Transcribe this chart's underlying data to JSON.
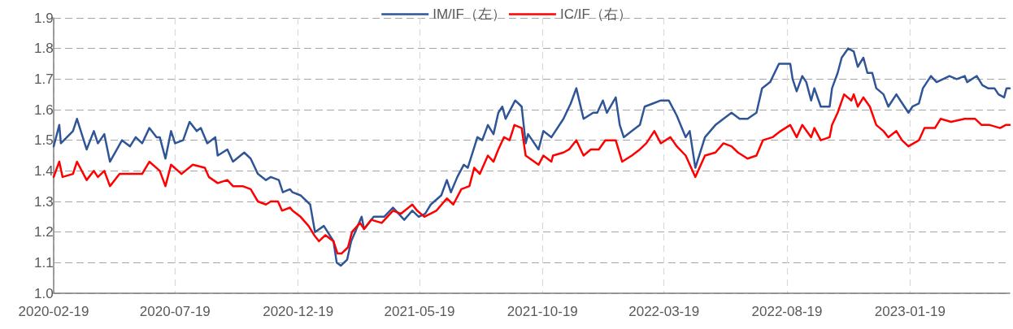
{
  "chart_data": {
    "type": "line",
    "grid": true,
    "legend": "top",
    "marker": "none",
    "line_style": "solid",
    "xlim": [
      "2020-02-19",
      "2023-05-23"
    ],
    "xticks": [
      "2020-02-19",
      "2020-07-19",
      "2020-12-19",
      "2021-05-19",
      "2021-10-19",
      "2022-03-19",
      "2022-08-19",
      "2023-01-19"
    ],
    "ylim": [
      1.0,
      1.9
    ],
    "yticks": [
      {
        "value": 1.0,
        "label": "1.0"
      },
      {
        "value": 1.1,
        "label": "1.1"
      },
      {
        "value": 1.2,
        "label": "1.2"
      },
      {
        "value": 1.3,
        "label": "1.3"
      },
      {
        "value": 1.4,
        "label": "1.4"
      },
      {
        "value": 1.5,
        "label": "1.5"
      },
      {
        "value": 1.6,
        "label": "1.6"
      },
      {
        "value": 1.7,
        "label": "1.7"
      },
      {
        "value": 1.8,
        "label": "1.8"
      },
      {
        "value": 1.9,
        "label": "1.9"
      }
    ],
    "series": [
      {
        "name": "IM/IF（左）",
        "color": "#2f5597",
        "x": [
          "2020-02-19",
          "2020-02-26",
          "2020-02-28",
          "2020-03-14",
          "2020-03-19",
          "2020-03-31",
          "2020-04-09",
          "2020-04-14",
          "2020-04-22",
          "2020-04-29",
          "2020-05-14",
          "2020-05-24",
          "2020-05-31",
          "2020-06-08",
          "2020-06-17",
          "2020-06-26",
          "2020-06-30",
          "2020-07-07",
          "2020-07-14",
          "2020-07-19",
          "2020-07-29",
          "2020-08-06",
          "2020-08-15",
          "2020-08-20",
          "2020-08-28",
          "2020-09-07",
          "2020-09-10",
          "2020-09-22",
          "2020-09-29",
          "2020-10-13",
          "2020-10-21",
          "2020-10-30",
          "2020-11-09",
          "2020-11-15",
          "2020-11-25",
          "2020-11-30",
          "2020-12-09",
          "2020-12-12",
          "2020-12-22",
          "2021-01-03",
          "2021-01-09",
          "2021-01-20",
          "2021-02-01",
          "2021-02-05",
          "2021-02-10",
          "2021-02-18",
          "2021-02-23",
          "2021-03-08",
          "2021-03-11",
          "2021-03-23",
          "2021-04-05",
          "2021-04-16",
          "2021-04-30",
          "2021-05-10",
          "2021-05-18",
          "2021-05-26",
          "2021-06-02",
          "2021-06-15",
          "2021-06-22",
          "2021-06-27",
          "2021-07-05",
          "2021-07-13",
          "2021-07-18",
          "2021-07-30",
          "2021-08-05",
          "2021-08-12",
          "2021-08-19",
          "2021-08-25",
          "2021-08-30",
          "2021-09-03",
          "2021-09-15",
          "2021-09-23",
          "2021-09-28",
          "2021-10-01",
          "2021-10-14",
          "2021-10-20",
          "2021-10-30",
          "2021-11-14",
          "2021-11-23",
          "2021-11-30",
          "2021-12-09",
          "2021-12-21",
          "2021-12-26",
          "2022-01-02",
          "2022-01-07",
          "2022-01-18",
          "2022-01-23",
          "2022-01-28",
          "2022-02-07",
          "2022-02-17",
          "2022-02-23",
          "2022-03-05",
          "2022-03-15",
          "2022-03-25",
          "2022-04-04",
          "2022-04-15",
          "2022-04-20",
          "2022-04-27",
          "2022-05-09",
          "2022-05-22",
          "2022-06-01",
          "2022-06-11",
          "2022-06-21",
          "2022-07-01",
          "2022-07-12",
          "2022-07-19",
          "2022-07-29",
          "2022-08-09",
          "2022-08-18",
          "2022-08-23",
          "2022-08-26",
          "2022-08-31",
          "2022-09-07",
          "2022-09-12",
          "2022-09-18",
          "2022-09-22",
          "2022-09-30",
          "2022-10-11",
          "2022-10-14",
          "2022-10-21",
          "2022-10-26",
          "2022-11-03",
          "2022-11-10",
          "2022-11-15",
          "2022-11-22",
          "2022-11-27",
          "2022-12-03",
          "2022-12-08",
          "2022-12-17",
          "2022-12-23",
          "2022-12-28",
          "2023-01-02",
          "2023-01-07",
          "2023-01-17",
          "2023-01-22",
          "2023-01-30",
          "2023-02-04",
          "2023-02-14",
          "2023-02-21",
          "2023-03-01",
          "2023-03-09",
          "2023-03-18",
          "2023-03-28",
          "2023-03-31",
          "2023-04-12",
          "2023-04-19",
          "2023-04-26",
          "2023-05-04",
          "2023-05-09",
          "2023-05-16",
          "2023-05-19",
          "2023-05-23"
        ],
        "values": [
          1.48,
          1.55,
          1.49,
          1.53,
          1.57,
          1.47,
          1.53,
          1.49,
          1.52,
          1.43,
          1.5,
          1.48,
          1.51,
          1.49,
          1.54,
          1.51,
          1.51,
          1.44,
          1.53,
          1.49,
          1.5,
          1.56,
          1.53,
          1.54,
          1.49,
          1.51,
          1.45,
          1.47,
          1.43,
          1.46,
          1.44,
          1.39,
          1.37,
          1.38,
          1.37,
          1.33,
          1.34,
          1.33,
          1.32,
          1.29,
          1.2,
          1.22,
          1.17,
          1.1,
          1.09,
          1.11,
          1.17,
          1.25,
          1.21,
          1.25,
          1.25,
          1.28,
          1.24,
          1.27,
          1.25,
          1.26,
          1.29,
          1.32,
          1.37,
          1.33,
          1.38,
          1.42,
          1.41,
          1.51,
          1.5,
          1.55,
          1.52,
          1.59,
          1.61,
          1.57,
          1.63,
          1.61,
          1.49,
          1.52,
          1.47,
          1.53,
          1.51,
          1.57,
          1.62,
          1.67,
          1.57,
          1.59,
          1.59,
          1.63,
          1.59,
          1.64,
          1.55,
          1.51,
          1.53,
          1.55,
          1.61,
          1.62,
          1.63,
          1.63,
          1.58,
          1.51,
          1.53,
          1.41,
          1.51,
          1.55,
          1.57,
          1.59,
          1.57,
          1.57,
          1.59,
          1.67,
          1.69,
          1.75,
          1.75,
          1.75,
          1.7,
          1.66,
          1.71,
          1.69,
          1.63,
          1.67,
          1.61,
          1.61,
          1.67,
          1.72,
          1.77,
          1.8,
          1.79,
          1.74,
          1.77,
          1.72,
          1.72,
          1.67,
          1.65,
          1.61,
          1.63,
          1.65,
          1.63,
          1.59,
          1.61,
          1.62,
          1.67,
          1.71,
          1.69,
          1.7,
          1.71,
          1.7,
          1.71,
          1.69,
          1.71,
          1.68,
          1.67,
          1.67,
          1.65,
          1.64,
          1.67,
          1.67
        ]
      },
      {
        "name": "IC/IF（右）",
        "color": "#ff0000",
        "x": [
          "2020-02-19",
          "2020-02-26",
          "2020-03-01",
          "2020-03-14",
          "2020-03-19",
          "2020-03-31",
          "2020-04-09",
          "2020-04-14",
          "2020-04-22",
          "2020-04-29",
          "2020-05-11",
          "2020-05-24",
          "2020-06-08",
          "2020-06-17",
          "2020-06-30",
          "2020-07-07",
          "2020-07-14",
          "2020-07-27",
          "2020-08-10",
          "2020-08-25",
          "2020-08-30",
          "2020-09-10",
          "2020-09-22",
          "2020-09-29",
          "2020-10-11",
          "2020-10-21",
          "2020-10-30",
          "2020-11-09",
          "2020-11-15",
          "2020-11-24",
          "2020-11-29",
          "2020-12-09",
          "2020-12-12",
          "2020-12-22",
          "2021-01-01",
          "2021-01-08",
          "2021-01-14",
          "2021-01-22",
          "2021-02-01",
          "2021-02-06",
          "2021-02-11",
          "2021-02-19",
          "2021-02-24",
          "2021-03-06",
          "2021-03-11",
          "2021-03-20",
          "2021-04-02",
          "2021-04-16",
          "2021-04-26",
          "2021-05-10",
          "2021-05-16",
          "2021-05-25",
          "2021-06-09",
          "2021-06-22",
          "2021-06-30",
          "2021-07-10",
          "2021-07-20",
          "2021-07-26",
          "2021-08-02",
          "2021-08-12",
          "2021-08-19",
          "2021-08-25",
          "2021-09-01",
          "2021-09-08",
          "2021-09-14",
          "2021-09-23",
          "2021-09-28",
          "2021-10-14",
          "2021-10-20",
          "2021-10-30",
          "2021-11-01",
          "2021-11-14",
          "2021-11-21",
          "2021-11-30",
          "2021-12-09",
          "2021-12-18",
          "2021-12-28",
          "2022-01-05",
          "2022-01-18",
          "2022-01-26",
          "2022-02-07",
          "2022-02-17",
          "2022-02-25",
          "2022-03-07",
          "2022-03-15",
          "2022-03-27",
          "2022-04-04",
          "2022-04-15",
          "2022-04-27",
          "2022-05-09",
          "2022-05-22",
          "2022-06-01",
          "2022-06-11",
          "2022-06-19",
          "2022-07-01",
          "2022-07-12",
          "2022-07-20",
          "2022-08-01",
          "2022-08-11",
          "2022-08-23",
          "2022-08-31",
          "2022-09-07",
          "2022-09-18",
          "2022-09-22",
          "2022-09-30",
          "2022-10-11",
          "2022-10-14",
          "2022-10-21",
          "2022-10-29",
          "2022-11-07",
          "2022-11-10",
          "2022-11-15",
          "2022-11-22",
          "2022-11-30",
          "2022-12-08",
          "2022-12-17",
          "2022-12-23",
          "2023-01-02",
          "2023-01-09",
          "2023-01-17",
          "2023-01-30",
          "2023-02-06",
          "2023-02-19",
          "2023-02-26",
          "2023-03-11",
          "2023-03-28",
          "2023-04-10",
          "2023-04-18",
          "2023-04-28",
          "2023-05-11",
          "2023-05-18",
          "2023-05-23"
        ],
        "values": [
          1.38,
          1.43,
          1.38,
          1.39,
          1.43,
          1.37,
          1.4,
          1.38,
          1.4,
          1.35,
          1.39,
          1.39,
          1.39,
          1.43,
          1.4,
          1.35,
          1.42,
          1.39,
          1.42,
          1.41,
          1.38,
          1.36,
          1.37,
          1.35,
          1.35,
          1.34,
          1.3,
          1.29,
          1.3,
          1.3,
          1.27,
          1.28,
          1.27,
          1.25,
          1.22,
          1.19,
          1.17,
          1.19,
          1.17,
          1.13,
          1.13,
          1.15,
          1.2,
          1.23,
          1.21,
          1.24,
          1.23,
          1.27,
          1.26,
          1.29,
          1.27,
          1.25,
          1.27,
          1.31,
          1.29,
          1.34,
          1.35,
          1.41,
          1.39,
          1.45,
          1.43,
          1.47,
          1.51,
          1.5,
          1.55,
          1.54,
          1.45,
          1.42,
          1.45,
          1.43,
          1.45,
          1.46,
          1.47,
          1.5,
          1.45,
          1.47,
          1.47,
          1.5,
          1.5,
          1.43,
          1.45,
          1.47,
          1.49,
          1.53,
          1.49,
          1.51,
          1.48,
          1.45,
          1.38,
          1.45,
          1.46,
          1.49,
          1.48,
          1.46,
          1.44,
          1.45,
          1.5,
          1.51,
          1.53,
          1.55,
          1.51,
          1.55,
          1.51,
          1.54,
          1.5,
          1.51,
          1.55,
          1.59,
          1.65,
          1.63,
          1.65,
          1.61,
          1.64,
          1.61,
          1.55,
          1.53,
          1.51,
          1.53,
          1.5,
          1.48,
          1.5,
          1.54,
          1.54,
          1.57,
          1.56,
          1.57,
          1.57,
          1.55,
          1.55,
          1.54,
          1.55,
          1.55
        ]
      }
    ]
  }
}
